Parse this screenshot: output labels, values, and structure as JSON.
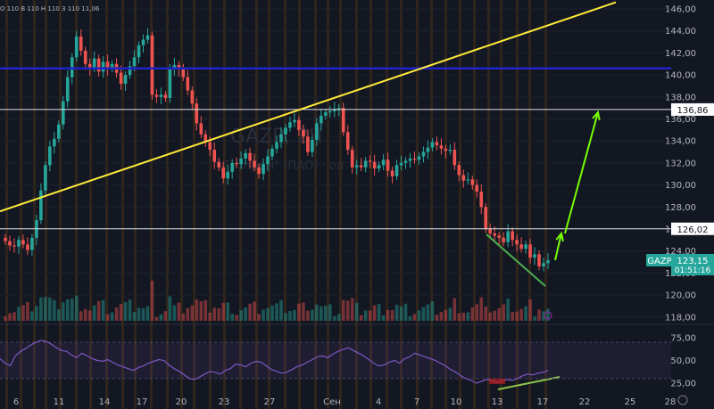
{
  "chart_data": {
    "type": "candlestick",
    "ohlc_header": "О 110 В 110 Н 110 З 110 11,06",
    "symbol": "GAZP",
    "timeframe": "2Ч",
    "watermark_main": "GAZP, 2Ч",
    "watermark_sub": "Газпром\" (ПАО) · ол",
    "last_price_label": "123,15",
    "countdown": "01:51:16",
    "level_labels": [
      "136,86",
      "126,02"
    ],
    "level_values": [
      136.86,
      126.02
    ],
    "ylim": [
      117.3,
      146.6
    ],
    "y_ticks": [
      "146,00",
      "144,00",
      "142,00",
      "140,00",
      "138,00",
      "136,00",
      "134,00",
      "132,00",
      "130,00",
      "128,00",
      "126,00",
      "124,00",
      "122,00",
      "120,00",
      "118,00"
    ],
    "y_tick_values": [
      146,
      144,
      142,
      140,
      138,
      136,
      134,
      132,
      130,
      128,
      126,
      124,
      122,
      120,
      118
    ],
    "x_ticks": [
      "6",
      "11",
      "14",
      "17",
      "20",
      "23",
      "27",
      "Сен",
      "4",
      "7",
      "10",
      "13",
      "17",
      "22",
      "25",
      "28"
    ],
    "blue_level": 140.6,
    "trendline": {
      "from": [
        0,
        127.6
      ],
      "to": [
        58,
        146.6
      ]
    },
    "rsi": {
      "ticks": [
        "75,00",
        "50,00",
        "25,00"
      ],
      "values": [
        75,
        50,
        25
      ],
      "band": [
        30,
        70
      ]
    },
    "close_series": [
      124.9,
      124.5,
      124.4,
      125.0,
      124.6,
      124.1,
      125.2,
      126.8,
      129.5,
      131.8,
      133.5,
      134.2,
      135.5,
      137.6,
      139.8,
      141.6,
      143.5,
      142.2,
      141.0,
      140.6,
      141.5,
      140.3,
      141.2,
      140.6,
      141.0,
      140.2,
      139.2,
      140.0,
      140.8,
      141.6,
      142.7,
      143.2,
      143.6,
      138.2,
      138.0,
      138.2,
      137.9,
      140.5,
      140.9,
      140.5,
      139.8,
      138.6,
      137.4,
      135.6,
      134.6,
      133.9,
      133.2,
      132.1,
      131.6,
      130.6,
      131.2,
      132.0,
      131.9,
      132.4,
      132.9,
      132.2,
      131.6,
      131.0,
      131.9,
      132.6,
      133.3,
      133.9,
      134.6,
      135.2,
      135.7,
      135.9,
      135.0,
      134.4,
      133.0,
      134.1,
      135.6,
      136.3,
      136.6,
      136.7,
      136.9,
      137.0,
      134.8,
      133.2,
      131.6,
      131.8,
      131.6,
      132.2,
      132.1,
      131.5,
      131.8,
      132.3,
      131.3,
      130.8,
      131.8,
      132.0,
      132.2,
      132.4,
      132.3,
      132.6,
      133.0,
      133.4,
      133.9,
      133.6,
      133.3,
      133.1,
      133.2,
      131.8,
      130.9,
      130.4,
      130.5,
      130.0,
      129.4,
      128.0,
      126.0,
      125.6,
      125.4,
      125.2,
      124.8,
      125.8,
      125.0,
      124.6,
      124.2,
      124.6,
      123.4,
      123.7,
      122.6,
      122.9,
      123.15
    ],
    "rsi_series": [
      52,
      47,
      44,
      55,
      60,
      63,
      67,
      70,
      72,
      71,
      68,
      64,
      61,
      60,
      56,
      53,
      58,
      55,
      52,
      50,
      49,
      51,
      48,
      45,
      43,
      41,
      39,
      42,
      44,
      47,
      49,
      51,
      50,
      45,
      41,
      38,
      34,
      30,
      29,
      32,
      35,
      38,
      37,
      35,
      39,
      41,
      46,
      45,
      43,
      47,
      49,
      48,
      44,
      40,
      38,
      36,
      37,
      40,
      43,
      45,
      48,
      51,
      54,
      55,
      53,
      57,
      60,
      62,
      64,
      61,
      58,
      55,
      51,
      47,
      44,
      45,
      48,
      50,
      47,
      52,
      54,
      58,
      56,
      54,
      52,
      50,
      47,
      44,
      40,
      37,
      33,
      30,
      28,
      25,
      27,
      29,
      28,
      26,
      27,
      29,
      28,
      30,
      33,
      35,
      34,
      36,
      37,
      39
    ]
  }
}
